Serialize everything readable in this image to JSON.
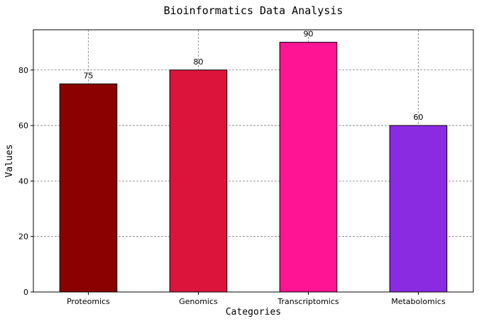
{
  "chart_data": {
    "type": "bar",
    "title": "Bioinformatics Data Analysis",
    "xlabel": "Categories",
    "ylabel": "Values",
    "categories": [
      "Proteomics",
      "Genomics",
      "Transcriptomics",
      "Metabolomics"
    ],
    "values": [
      75,
      80,
      90,
      60
    ],
    "value_labels": [
      "75",
      "80",
      "90",
      "60"
    ],
    "colors": [
      "#8b0000",
      "#dc143c",
      "#ff1493",
      "#8a2be2"
    ],
    "edge_color": "#000000",
    "ylim": [
      0,
      94.5
    ],
    "yticks": [
      0,
      20,
      40,
      60,
      80
    ],
    "ytick_labels": [
      "0",
      "20",
      "40",
      "60",
      "80"
    ],
    "grid": true,
    "grid_style": "dashed",
    "grid_color": "#808080"
  }
}
